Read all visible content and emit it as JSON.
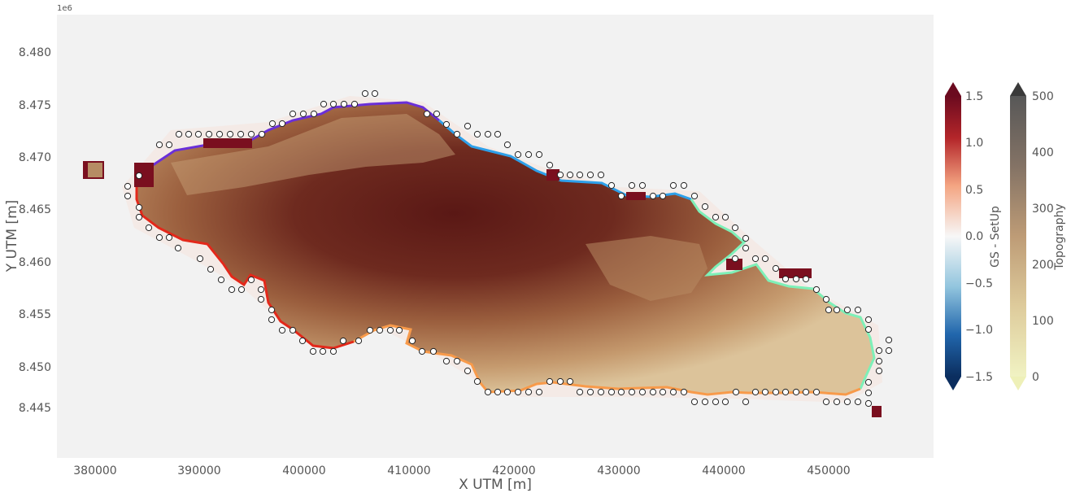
{
  "figure": {
    "offset_text": "1e6",
    "xlabel": "X UTM [m]",
    "ylabel": "Y UTM [m]",
    "x_ticks": [
      "380000",
      "390000",
      "400000",
      "410000",
      "420000",
      "430000",
      "440000",
      "450000"
    ],
    "y_ticks": [
      "8.445",
      "8.450",
      "8.455",
      "8.460",
      "8.465",
      "8.470",
      "8.475",
      "8.480"
    ]
  },
  "colorbars": {
    "setup": {
      "label": "GS - SetUp",
      "ticks": [
        "1.5",
        "1.0",
        "0.5",
        "0.0",
        "−0.5",
        "−1.0",
        "−1.5"
      ],
      "colormap": "RdBu_r",
      "range": [
        -1.5,
        1.5
      ]
    },
    "topo": {
      "label": "Topography",
      "ticks": [
        "500",
        "400",
        "300",
        "200",
        "100",
        "0"
      ],
      "colormap": "pink-brown",
      "range": [
        0,
        500
      ]
    }
  },
  "colors": {
    "ocean": "#f2f2f2",
    "land_high": "#5c1a16",
    "land_mid": "#a86f4a",
    "land_low": "#d8b88e",
    "setup_high": "#7a0f1f",
    "coast_west": "#e3281a",
    "coast_north": "#6a2fd8",
    "coast_northeast": "#2ea0ea",
    "coast_east": "#7ef0b8",
    "coast_south": "#f89a4a"
  }
}
